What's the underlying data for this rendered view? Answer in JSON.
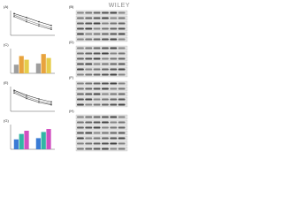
{
  "header": {
    "publisher": "WILEY"
  },
  "panels": [
    {
      "label": "(A)",
      "type": "line",
      "ylim": [
        0,
        100
      ],
      "series": [
        {
          "color": "#333333",
          "values": [
            88,
            72,
            55,
            40
          ]
        },
        {
          "color": "#777777",
          "values": [
            82,
            62,
            45,
            30
          ]
        },
        {
          "color": "#555555",
          "values": [
            76,
            55,
            38,
            24
          ]
        }
      ]
    },
    {
      "label": "(B)",
      "type": "blot"
    },
    {
      "label": "(C)",
      "type": "bar",
      "ylim": [
        0,
        100
      ],
      "series": [
        {
          "color": "#9e9e9e",
          "values": [
            35,
            40
          ]
        },
        {
          "color": "#e8a33d",
          "values": [
            70,
            78
          ]
        },
        {
          "color": "#e6cc4a",
          "values": [
            55,
            62
          ]
        }
      ]
    },
    {
      "label": "(D)",
      "type": "blot"
    },
    {
      "label": "(E)",
      "type": "line",
      "ylim": [
        0,
        100
      ],
      "series": [
        {
          "color": "#333333",
          "values": [
            85,
            65,
            50,
            38
          ]
        },
        {
          "color": "#777777",
          "values": [
            80,
            58,
            42,
            30
          ]
        },
        {
          "color": "#555555",
          "values": [
            74,
            52,
            36,
            26
          ]
        }
      ]
    },
    {
      "label": "(F)",
      "type": "blot"
    },
    {
      "label": "(G)",
      "type": "bar",
      "ylim": [
        0,
        100
      ],
      "series": [
        {
          "color": "#3a7bd5",
          "values": [
            40,
            45
          ]
        },
        {
          "color": "#33b5a5",
          "values": [
            62,
            70
          ]
        },
        {
          "color": "#d14fc0",
          "values": [
            75,
            82
          ]
        }
      ]
    },
    {
      "label": "(H)",
      "type": "blot"
    }
  ]
}
